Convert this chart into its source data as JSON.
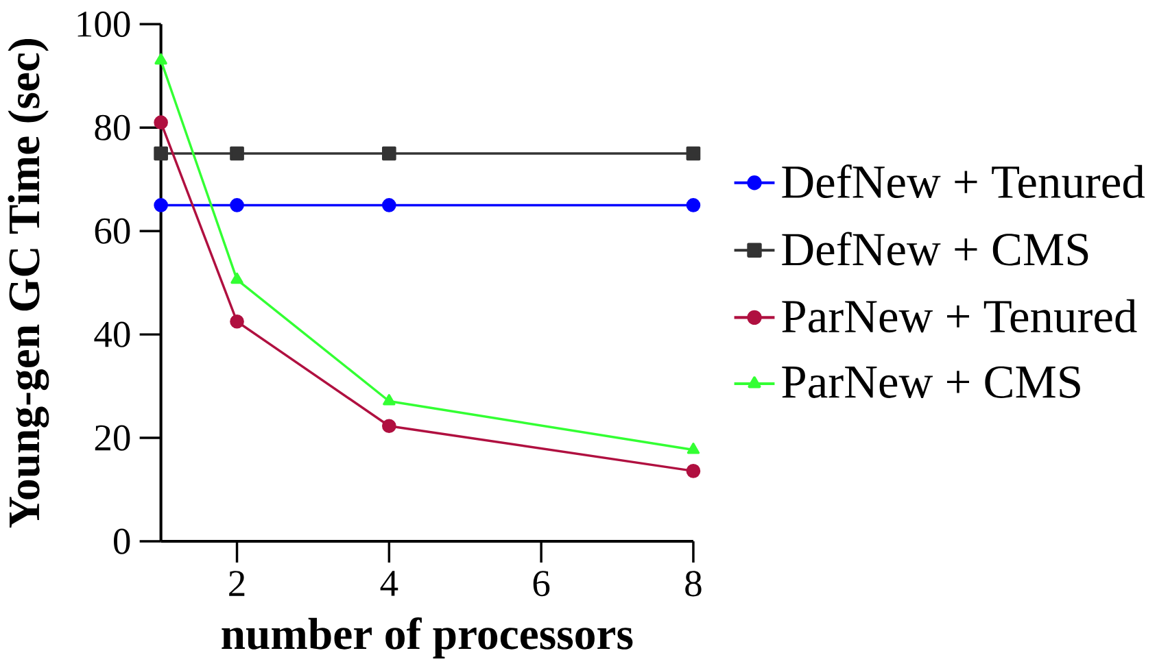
{
  "chart_data": {
    "type": "line",
    "xlabel": "number of processors",
    "ylabel": "Young-gen GC Time (sec)",
    "x": [
      1,
      2,
      4,
      8
    ],
    "series": [
      {
        "name": "DefNew + Tenured",
        "color": "#0000ff",
        "marker": "circle",
        "values": [
          65,
          65,
          65,
          65
        ]
      },
      {
        "name": "DefNew + CMS",
        "color": "#333333",
        "marker": "square",
        "values": [
          75,
          75,
          75,
          75
        ]
      },
      {
        "name": "ParNew + Tenured",
        "color": "#b01040",
        "marker": "circle",
        "values": [
          81,
          42.5,
          22.3,
          13.6
        ]
      },
      {
        "name": "ParNew + CMS",
        "color": "#33ff33",
        "marker": "triangle",
        "values": [
          93,
          50.6,
          27.1,
          17.7
        ]
      }
    ],
    "xlim": [
      1,
      8
    ],
    "ylim": [
      0,
      100
    ],
    "xticks": [
      2,
      4,
      6,
      8
    ],
    "yticks": [
      0,
      20,
      40,
      60,
      80,
      100
    ],
    "legend": "right",
    "line_style": "solid"
  }
}
